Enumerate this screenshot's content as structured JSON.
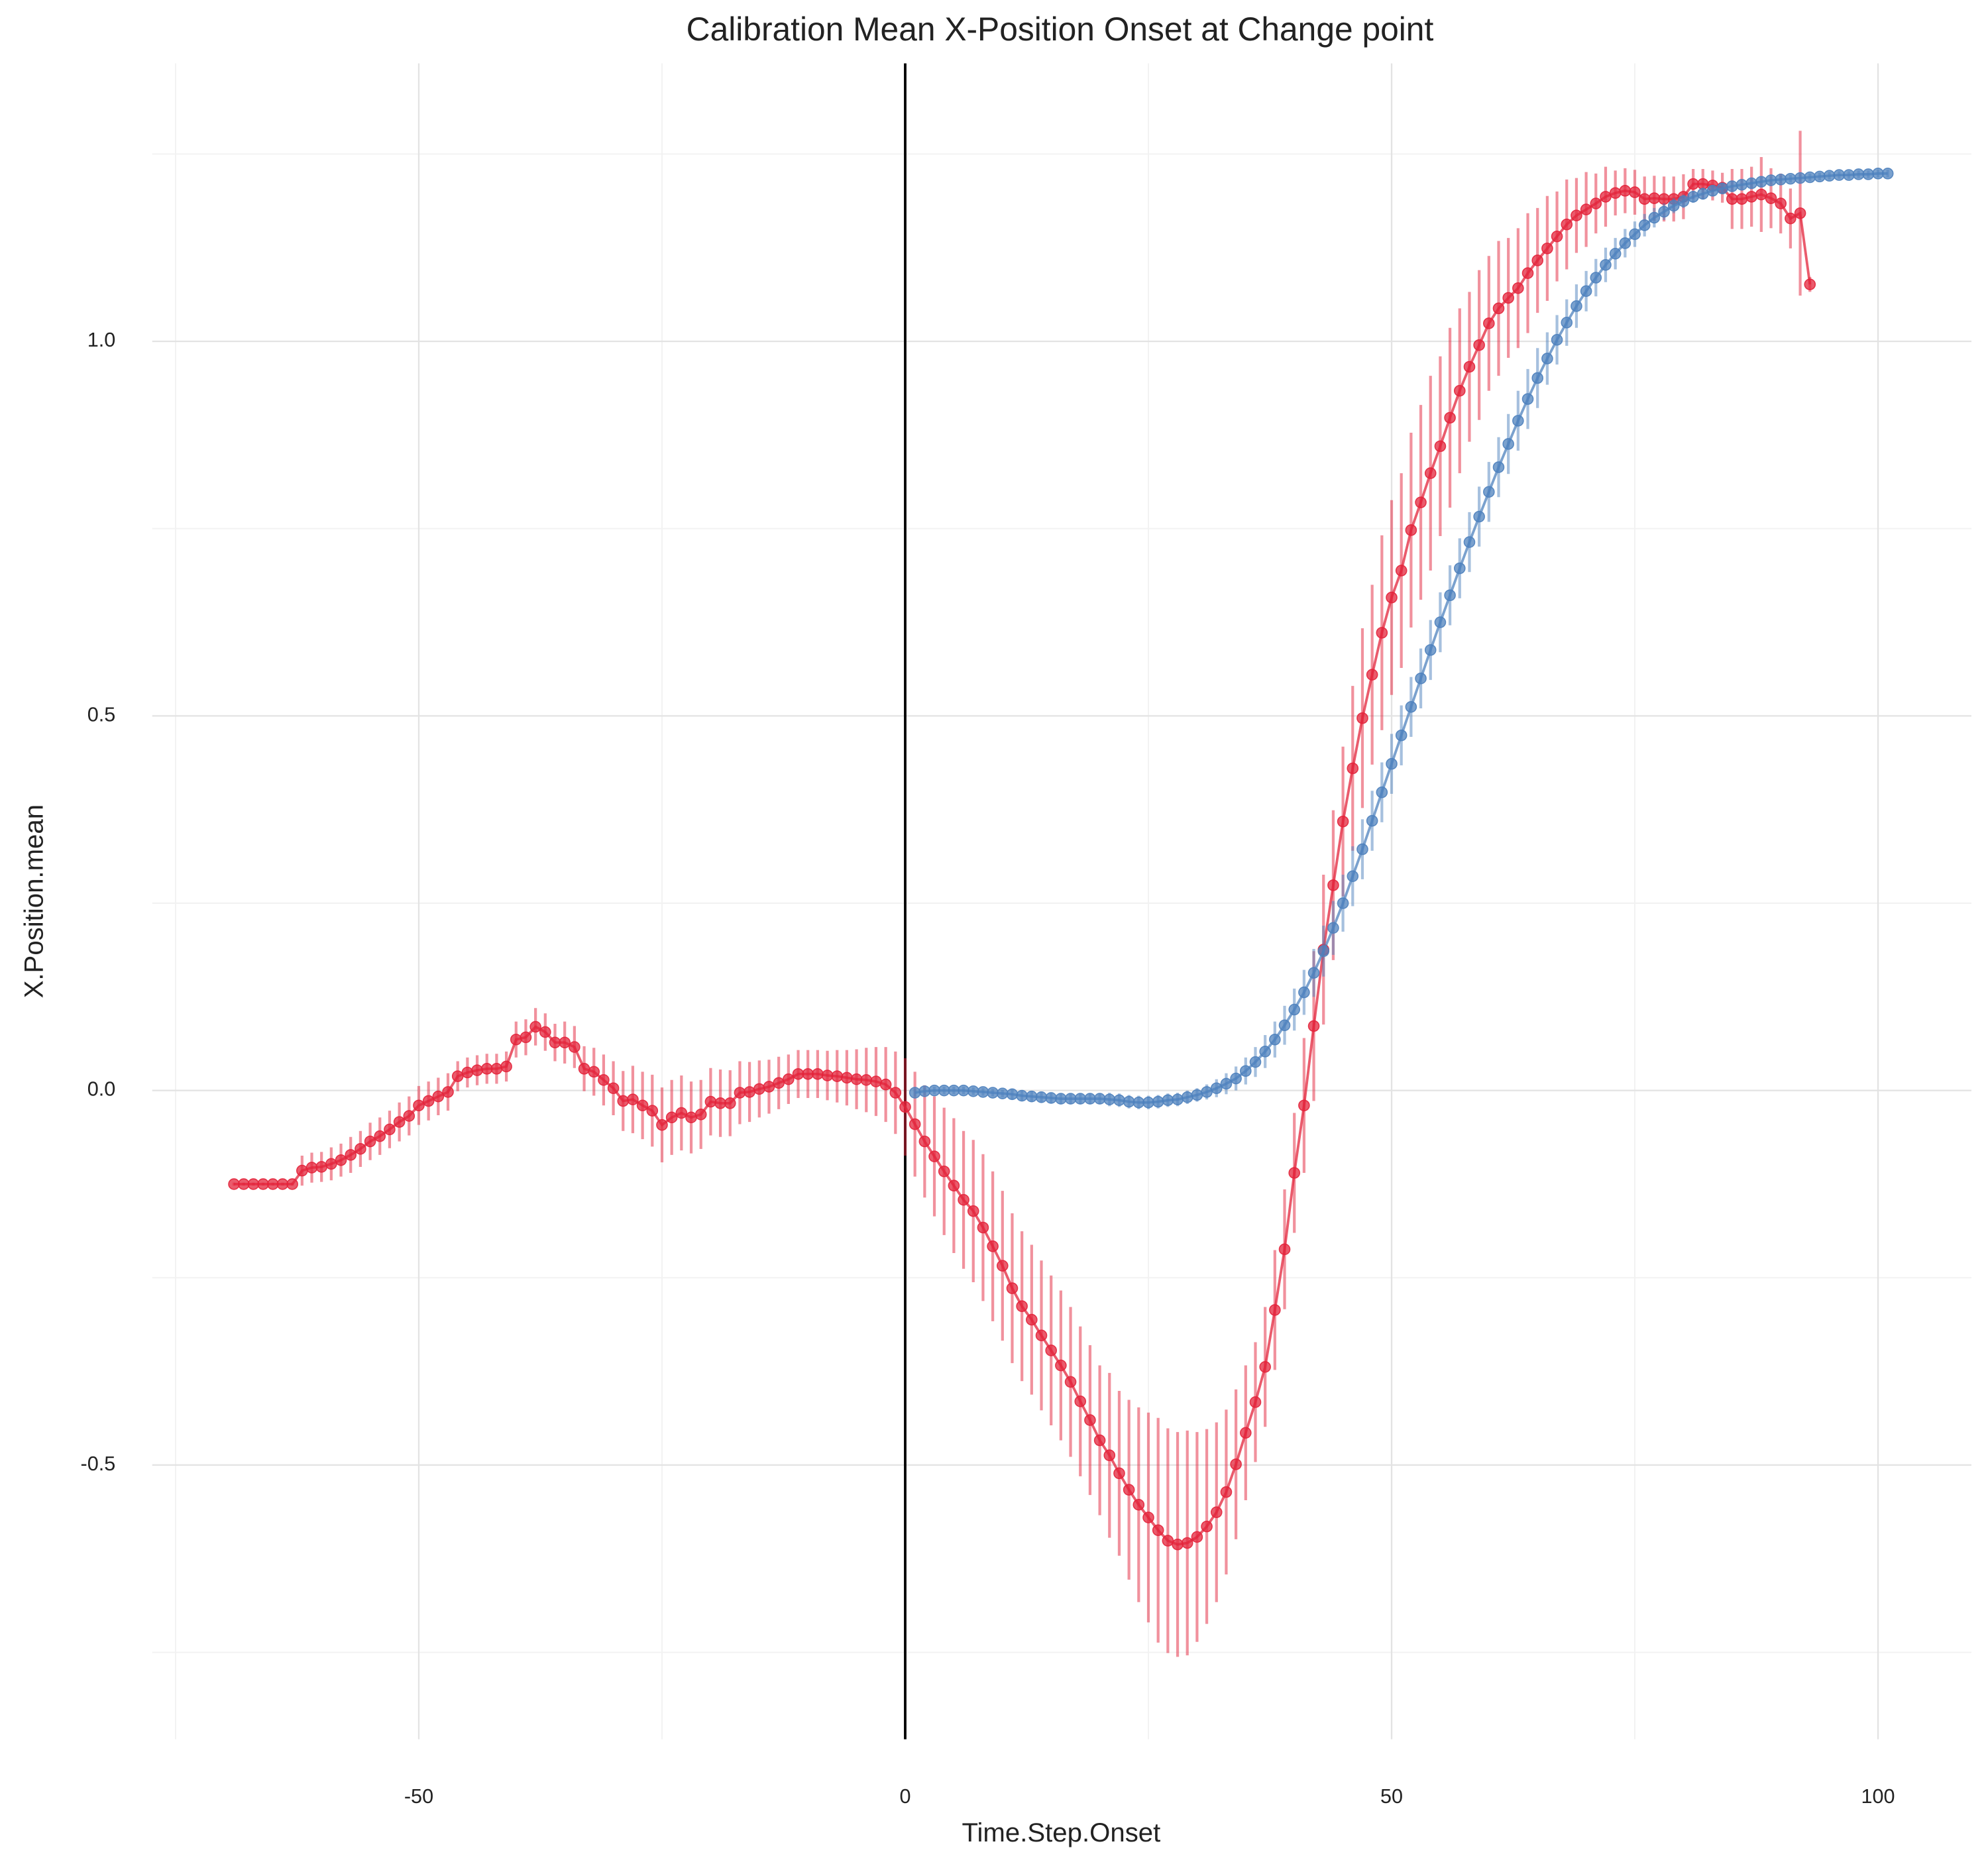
{
  "chart_data": {
    "type": "scatter-errorbar",
    "title": "Calibration Mean X-Position Onset at Change point",
    "x_label": "Time.Step.Onset",
    "y_label": "X.Position.mean",
    "xlim": [
      -77.4,
      109.6
    ],
    "ylim": [
      -0.866,
      1.371
    ],
    "xticks": [
      -50,
      0,
      50,
      100
    ],
    "yticks": [
      -0.5,
      {
        "value": 0,
        "label": "0.0"
      },
      0.5,
      {
        "value": 1,
        "label": "1.0"
      }
    ],
    "minor_xticks": [
      -75,
      -25,
      25,
      75
    ],
    "minor_yticks": [
      -0.75,
      -0.25,
      0.25,
      0.75,
      1.25
    ],
    "grid": true,
    "vline": 0,
    "series": [
      {
        "color": "#e3243b",
        "x": [
          -69,
          -68,
          -67,
          -66,
          -65,
          -64,
          -63,
          -62,
          -61,
          -60,
          -59,
          -58,
          -57,
          -56,
          -55,
          -54,
          -53,
          -52,
          -51,
          -50,
          -49,
          -48,
          -47,
          -46,
          -45,
          -44,
          -43,
          -42,
          -41,
          -40,
          -39,
          -38,
          -37,
          -36,
          -35,
          -34,
          -33,
          -32,
          -31,
          -30,
          -29,
          -28,
          -27,
          -26,
          -25,
          -24,
          -23,
          -22,
          -21,
          -20,
          -19,
          -18,
          -17,
          -16,
          -15,
          -14,
          -13,
          -12,
          -11,
          -10,
          -9,
          -8,
          -7,
          -6,
          -5,
          -4,
          -3,
          -2,
          -1,
          0,
          1,
          2,
          3,
          4,
          5,
          6,
          7,
          8,
          9,
          10,
          11,
          12,
          13,
          14,
          15,
          16,
          17,
          18,
          19,
          20,
          21,
          22,
          23,
          24,
          25,
          26,
          27,
          28,
          29,
          30,
          31,
          32,
          33,
          34,
          35,
          36,
          37,
          38,
          39,
          40,
          41,
          42,
          43,
          44,
          45,
          46,
          47,
          48,
          49,
          50,
          51,
          52,
          53,
          54,
          55,
          56,
          57,
          58,
          59,
          60,
          61,
          62,
          63,
          64,
          65,
          66,
          67,
          68,
          69,
          70,
          71,
          72,
          73,
          74,
          75,
          76,
          77,
          78,
          79,
          80,
          81,
          82,
          83,
          84,
          85,
          86,
          87,
          88,
          89,
          90,
          91,
          92,
          93
        ],
        "values": [
          -0.125,
          -0.125,
          -0.125,
          -0.125,
          -0.125,
          -0.125,
          -0.125,
          -0.107,
          -0.103,
          -0.102,
          -0.098,
          -0.093,
          -0.086,
          -0.078,
          -0.068,
          -0.061,
          -0.052,
          -0.042,
          -0.034,
          -0.02,
          -0.014,
          -0.008,
          -0.002,
          0.019,
          0.024,
          0.027,
          0.029,
          0.029,
          0.032,
          0.068,
          0.071,
          0.085,
          0.078,
          0.064,
          0.064,
          0.058,
          0.029,
          0.025,
          0.014,
          0.003,
          -0.014,
          -0.012,
          -0.02,
          -0.027,
          -0.046,
          -0.036,
          -0.03,
          -0.036,
          -0.032,
          -0.015,
          -0.017,
          -0.017,
          -0.003,
          -0.002,
          0.002,
          0.005,
          0.01,
          0.015,
          0.022,
          0.022,
          0.022,
          0.02,
          0.019,
          0.017,
          0.015,
          0.014,
          0.012,
          0.008,
          -0.003,
          -0.022,
          -0.045,
          -0.068,
          -0.088,
          -0.108,
          -0.127,
          -0.146,
          -0.161,
          -0.183,
          -0.208,
          -0.234,
          -0.264,
          -0.288,
          -0.306,
          -0.327,
          -0.347,
          -0.367,
          -0.389,
          -0.415,
          -0.44,
          -0.467,
          -0.487,
          -0.511,
          -0.533,
          -0.553,
          -0.57,
          -0.587,
          -0.601,
          -0.606,
          -0.604,
          -0.596,
          -0.582,
          -0.563,
          -0.536,
          -0.499,
          -0.457,
          -0.416,
          -0.369,
          -0.293,
          -0.212,
          -0.11,
          -0.02,
          0.086,
          0.188,
          0.274,
          0.359,
          0.43,
          0.497,
          0.555,
          0.611,
          0.658,
          0.694,
          0.748,
          0.785,
          0.824,
          0.86,
          0.898,
          0.934,
          0.966,
          0.995,
          1.024,
          1.044,
          1.058,
          1.071,
          1.091,
          1.108,
          1.124,
          1.14,
          1.156,
          1.168,
          1.176,
          1.184,
          1.193,
          1.198,
          1.201,
          1.199,
          1.19,
          1.191,
          1.19,
          1.19,
          1.193,
          1.21,
          1.21,
          1.208,
          1.205,
          1.19,
          1.19,
          1.193,
          1.196,
          1.191,
          1.184,
          1.164,
          1.171,
          1.076
        ],
        "errors": [
          0.002,
          0.002,
          0.002,
          0.002,
          0.002,
          0.002,
          0.002,
          0.02,
          0.02,
          0.02,
          0.022,
          0.022,
          0.024,
          0.024,
          0.025,
          0.025,
          0.025,
          0.026,
          0.026,
          0.026,
          0.026,
          0.025,
          0.025,
          0.02,
          0.02,
          0.02,
          0.02,
          0.02,
          0.02,
          0.024,
          0.024,
          0.025,
          0.025,
          0.025,
          0.028,
          0.028,
          0.03,
          0.032,
          0.034,
          0.036,
          0.04,
          0.045,
          0.045,
          0.048,
          0.05,
          0.05,
          0.05,
          0.048,
          0.046,
          0.045,
          0.045,
          0.044,
          0.042,
          0.04,
          0.038,
          0.036,
          0.035,
          0.033,
          0.032,
          0.032,
          0.032,
          0.033,
          0.035,
          0.037,
          0.04,
          0.043,
          0.046,
          0.05,
          0.055,
          0.065,
          0.07,
          0.075,
          0.08,
          0.085,
          0.09,
          0.092,
          0.095,
          0.098,
          0.1,
          0.1,
          0.1,
          0.1,
          0.1,
          0.1,
          0.1,
          0.1,
          0.1,
          0.1,
          0.1,
          0.1,
          0.11,
          0.11,
          0.12,
          0.13,
          0.14,
          0.15,
          0.15,
          0.15,
          0.15,
          0.14,
          0.13,
          0.12,
          0.11,
          0.1,
          0.09,
          0.08,
          0.08,
          0.08,
          0.08,
          0.08,
          0.09,
          0.1,
          0.1,
          0.1,
          0.1,
          0.11,
          0.12,
          0.12,
          0.13,
          0.13,
          0.13,
          0.13,
          0.13,
          0.13,
          0.12,
          0.12,
          0.11,
          0.1,
          0.1,
          0.09,
          0.09,
          0.08,
          0.08,
          0.08,
          0.07,
          0.07,
          0.06,
          0.06,
          0.05,
          0.05,
          0.04,
          0.04,
          0.03,
          0.03,
          0.03,
          0.03,
          0.03,
          0.03,
          0.03,
          0.03,
          0.02,
          0.02,
          0.02,
          0.02,
          0.04,
          0.04,
          0.04,
          0.05,
          0.04,
          0.04,
          0.04,
          0.11,
          0.01
        ]
      },
      {
        "color": "#4e81bd",
        "x": [
          1,
          2,
          3,
          4,
          5,
          6,
          7,
          8,
          9,
          10,
          11,
          12,
          13,
          14,
          15,
          16,
          17,
          18,
          19,
          20,
          21,
          22,
          23,
          24,
          25,
          26,
          27,
          28,
          29,
          30,
          31,
          32,
          33,
          34,
          35,
          36,
          37,
          38,
          39,
          40,
          41,
          42,
          43,
          44,
          45,
          46,
          47,
          48,
          49,
          50,
          51,
          52,
          53,
          54,
          55,
          56,
          57,
          58,
          59,
          60,
          61,
          62,
          63,
          64,
          65,
          66,
          67,
          68,
          69,
          70,
          71,
          72,
          73,
          74,
          75,
          76,
          77,
          78,
          79,
          80,
          81,
          82,
          83,
          84,
          85,
          86,
          87,
          88,
          89,
          90,
          91,
          92,
          93,
          94,
          95,
          96,
          97,
          98,
          99,
          100,
          101
        ],
        "values": [
          -0.003,
          -0.001,
          0.0,
          0.0,
          0.0,
          0.0,
          -0.001,
          -0.002,
          -0.003,
          -0.004,
          -0.005,
          -0.007,
          -0.008,
          -0.009,
          -0.01,
          -0.011,
          -0.011,
          -0.011,
          -0.011,
          -0.011,
          -0.012,
          -0.013,
          -0.015,
          -0.016,
          -0.016,
          -0.015,
          -0.013,
          -0.012,
          -0.009,
          -0.006,
          -0.002,
          0.003,
          0.009,
          0.016,
          0.026,
          0.038,
          0.052,
          0.068,
          0.087,
          0.108,
          0.131,
          0.157,
          0.186,
          0.217,
          0.25,
          0.286,
          0.322,
          0.36,
          0.398,
          0.436,
          0.474,
          0.512,
          0.55,
          0.588,
          0.625,
          0.661,
          0.697,
          0.732,
          0.766,
          0.799,
          0.832,
          0.863,
          0.894,
          0.923,
          0.951,
          0.977,
          1.002,
          1.025,
          1.047,
          1.067,
          1.085,
          1.102,
          1.117,
          1.131,
          1.143,
          1.155,
          1.165,
          1.173,
          1.181,
          1.187,
          1.193,
          1.197,
          1.201,
          1.204,
          1.207,
          1.209,
          1.211,
          1.213,
          1.215,
          1.216,
          1.217,
          1.218,
          1.219,
          1.22,
          1.221,
          1.222,
          1.222,
          1.223,
          1.223,
          1.224,
          1.224
        ],
        "errors": [
          0.005,
          0.005,
          0.005,
          0.005,
          0.005,
          0.005,
          0.005,
          0.005,
          0.005,
          0.005,
          0.007,
          0.007,
          0.007,
          0.007,
          0.007,
          0.007,
          0.007,
          0.007,
          0.007,
          0.007,
          0.009,
          0.009,
          0.009,
          0.009,
          0.009,
          0.009,
          0.009,
          0.009,
          0.009,
          0.009,
          0.01,
          0.012,
          0.014,
          0.016,
          0.018,
          0.02,
          0.022,
          0.024,
          0.026,
          0.028,
          0.03,
          0.032,
          0.034,
          0.036,
          0.038,
          0.04,
          0.04,
          0.04,
          0.04,
          0.04,
          0.04,
          0.04,
          0.04,
          0.04,
          0.04,
          0.04,
          0.04,
          0.04,
          0.04,
          0.04,
          0.04,
          0.04,
          0.04,
          0.04,
          0.04,
          0.035,
          0.033,
          0.031,
          0.029,
          0.027,
          0.025,
          0.023,
          0.021,
          0.019,
          0.017,
          0.015,
          0.013,
          0.011,
          0.01,
          0.009,
          0.008,
          0.008,
          0.007,
          0.007,
          0.007,
          0.006,
          0.006,
          0.006,
          0.005,
          0.005,
          0.005,
          0.005,
          0.005,
          0.005,
          0.005,
          0.005,
          0.005,
          0.005,
          0.005,
          0.005,
          0.005
        ]
      }
    ]
  }
}
